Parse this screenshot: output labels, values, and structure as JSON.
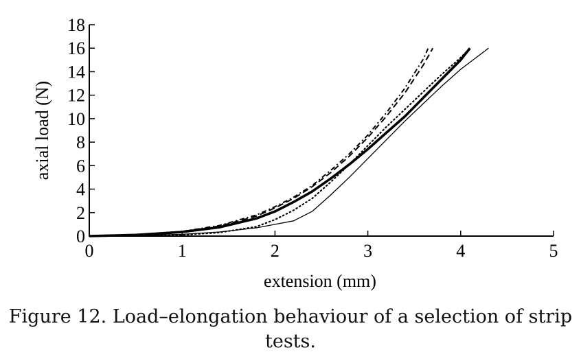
{
  "chart_data": {
    "type": "line",
    "title": "",
    "xlabel": "extension (mm)",
    "ylabel": "axial load (N)",
    "xlim": [
      0,
      5
    ],
    "ylim": [
      0,
      18
    ],
    "xticks": [
      0,
      1,
      2,
      3,
      4,
      5
    ],
    "yticks": [
      0,
      2,
      4,
      6,
      8,
      10,
      12,
      14,
      16,
      18
    ],
    "grid": false,
    "legend": "none",
    "series": [
      {
        "style": "thin-solid",
        "x": [
          0,
          0.5,
          1.0,
          1.4,
          1.8,
          2.0,
          2.2,
          2.4,
          2.6,
          2.8,
          3.0,
          3.2,
          3.4,
          3.6,
          3.8,
          4.0,
          4.2,
          4.3
        ],
        "y": [
          0,
          0.05,
          0.15,
          0.35,
          0.7,
          1.0,
          1.3,
          2.1,
          3.5,
          5.0,
          6.6,
          8.2,
          9.8,
          11.3,
          12.8,
          14.2,
          15.4,
          16.0
        ]
      },
      {
        "style": "thick-solid",
        "x": [
          0,
          0.5,
          1.0,
          1.4,
          1.8,
          2.0,
          2.2,
          2.4,
          2.6,
          2.8,
          3.0,
          3.2,
          3.4,
          3.6,
          3.8,
          4.0,
          4.1
        ],
        "y": [
          0,
          0.1,
          0.35,
          0.75,
          1.5,
          2.1,
          2.9,
          3.8,
          4.9,
          6.1,
          7.4,
          8.8,
          10.2,
          11.8,
          13.4,
          15.0,
          16.0
        ]
      },
      {
        "style": "dotted",
        "x": [
          0,
          0.5,
          1.0,
          1.4,
          1.8,
          2.0,
          2.2,
          2.4,
          2.6,
          2.8,
          3.0,
          3.2,
          3.4,
          3.6,
          3.8,
          4.0,
          4.1
        ],
        "y": [
          0,
          0.03,
          0.1,
          0.3,
          0.8,
          1.4,
          2.2,
          3.2,
          4.6,
          6.1,
          7.7,
          9.3,
          10.8,
          12.3,
          13.8,
          15.2,
          16.0
        ]
      },
      {
        "style": "dashed",
        "x": [
          0,
          0.5,
          1.0,
          1.4,
          1.8,
          2.0,
          2.2,
          2.4,
          2.6,
          2.8,
          3.0,
          3.2,
          3.4,
          3.6,
          3.7
        ],
        "y": [
          0,
          0.1,
          0.4,
          0.85,
          1.7,
          2.4,
          3.2,
          4.2,
          5.4,
          6.8,
          8.4,
          10.2,
          12.2,
          14.6,
          16.0
        ]
      },
      {
        "style": "dash-dot",
        "x": [
          0,
          0.5,
          1.0,
          1.4,
          1.8,
          2.0,
          2.2,
          2.4,
          2.6,
          2.8,
          3.0,
          3.2,
          3.4,
          3.6,
          3.65
        ],
        "y": [
          0,
          0.1,
          0.4,
          0.9,
          1.8,
          2.5,
          3.3,
          4.3,
          5.6,
          7.0,
          8.6,
          10.5,
          12.6,
          15.1,
          16.0
        ]
      }
    ]
  },
  "caption": {
    "line1": "Figure 12. Load–elongation behaviour of a selection of strip",
    "line2": "tests."
  }
}
